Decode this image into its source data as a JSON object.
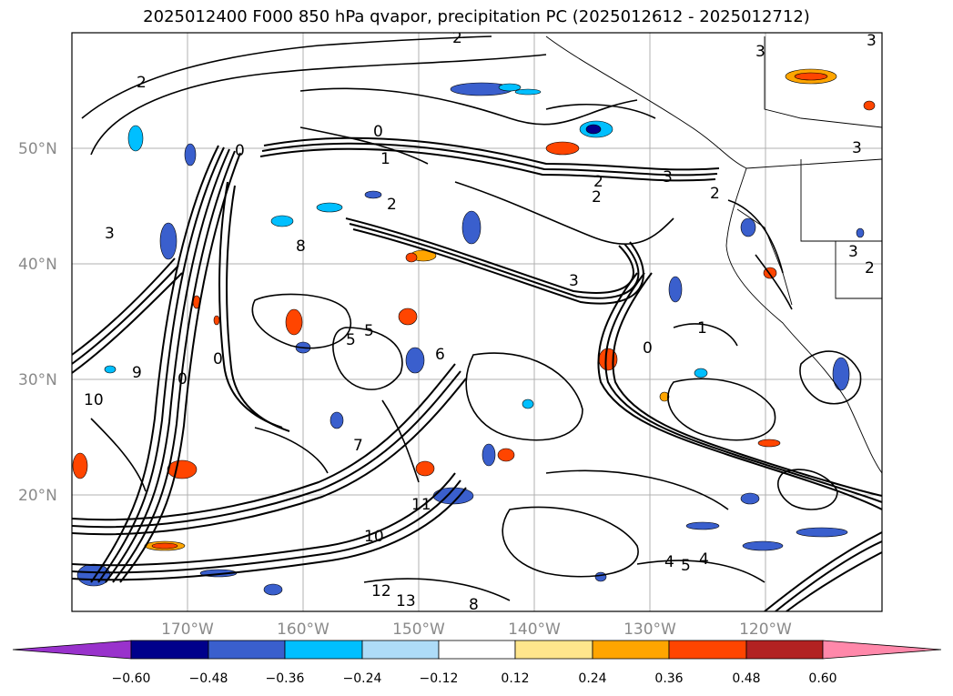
{
  "title": "2025012400 F000 850 hPa qvapor, precipitation PC (2025012612 - 2025012712)",
  "map": {
    "lat_labels": [
      "50°N",
      "40°N",
      "30°N",
      "20°N"
    ],
    "lon_labels": [
      "170°W",
      "160°W",
      "150°W",
      "140°W",
      "130°W",
      "120°W"
    ]
  },
  "contour_labels": [
    "2",
    "3",
    "3",
    "2",
    "0",
    "2",
    "3",
    "2",
    "2",
    "2",
    "1",
    "0",
    "3",
    "3",
    "8",
    "5",
    "5",
    "9",
    "0",
    "0",
    "10",
    "12",
    "13",
    "11",
    "10",
    "4",
    "4",
    "5",
    "8",
    "1",
    "0",
    "6",
    "7",
    "3",
    "3",
    "2"
  ],
  "colorbar": {
    "tick_labels": [
      "−0.60",
      "−0.48",
      "−0.36",
      "−0.24",
      "−0.12",
      "0.12",
      "0.24",
      "0.36",
      "0.48",
      "0.60"
    ],
    "colors": [
      "#9932cc",
      "#00008b",
      "#3a5fcd",
      "#00bfff",
      "#aedcf8",
      "#ffffff",
      "#ffe68c",
      "#ffa500",
      "#ff4500",
      "#b22222",
      "#ff88aa"
    ]
  }
}
